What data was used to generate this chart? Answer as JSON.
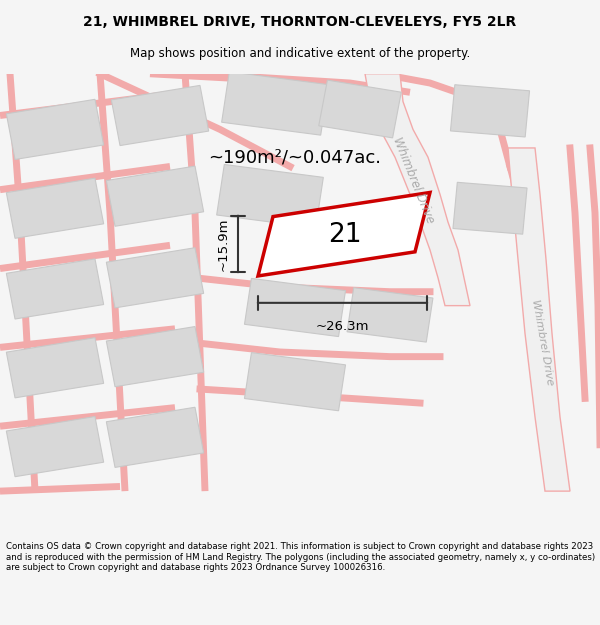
{
  "title_line1": "21, WHIMBREL DRIVE, THORNTON-CLEVELEYS, FY5 2LR",
  "title_line2": "Map shows position and indicative extent of the property.",
  "footer_text": "Contains OS data © Crown copyright and database right 2021. This information is subject to Crown copyright and database rights 2023 and is reproduced with the permission of HM Land Registry. The polygons (including the associated geometry, namely x, y co-ordinates) are subject to Crown copyright and database rights 2023 Ordnance Survey 100026316.",
  "area_label": "~190m²/~0.047ac.",
  "width_label": "~26.3m",
  "height_label": "~15.9m",
  "plot_number": "21",
  "background_color": "#f5f5f5",
  "map_bg": "#ffffff",
  "road_color": "#f2aaaa",
  "road_outline": "#f2aaaa",
  "block_color": "#d8d8d8",
  "block_edge": "#c8c8c8",
  "plot_fill": "#ffffff",
  "plot_edge": "#cc0000",
  "road_label_color": "#aaaaaa",
  "dim_line_color": "#333333",
  "road_bg": "#e8e8e8",
  "separator_color": "#cccccc"
}
